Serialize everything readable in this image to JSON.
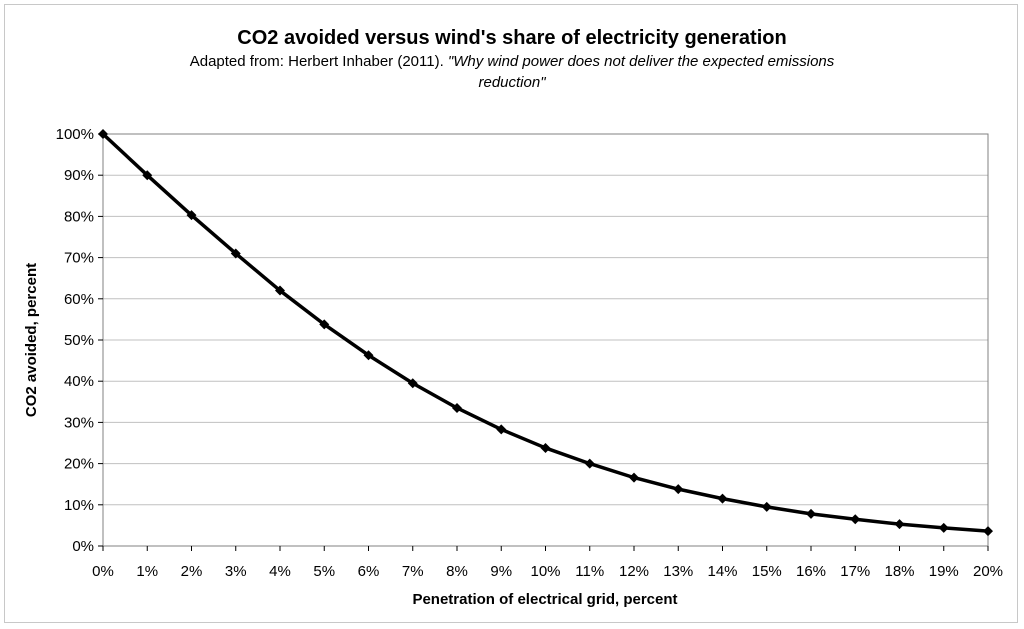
{
  "chart_data": {
    "type": "line",
    "title": "CO2 avoided versus wind's share of electricity generation",
    "subtitle_prefix": "Adapted from: Herbert Inhaber (2011). ",
    "subtitle_italic_line1": "\"Why wind power does not deliver the expected emissions",
    "subtitle_italic_line2": "reduction\"",
    "xlabel": "Penetration of electrical grid, percent",
    "ylabel": "CO2 avoided, percent",
    "x": [
      0,
      1,
      2,
      3,
      4,
      5,
      6,
      7,
      8,
      9,
      10,
      11,
      12,
      13,
      14,
      15,
      16,
      17,
      18,
      19,
      20
    ],
    "x_tick_labels": [
      "0%",
      "1%",
      "2%",
      "3%",
      "4%",
      "5%",
      "6%",
      "7%",
      "8%",
      "9%",
      "10%",
      "11%",
      "12%",
      "13%",
      "14%",
      "15%",
      "16%",
      "17%",
      "18%",
      "19%",
      "20%"
    ],
    "y_tick_labels": [
      "0%",
      "10%",
      "20%",
      "30%",
      "40%",
      "50%",
      "60%",
      "70%",
      "80%",
      "90%",
      "100%"
    ],
    "y_ticks": [
      0,
      10,
      20,
      30,
      40,
      50,
      60,
      70,
      80,
      90,
      100
    ],
    "series": [
      {
        "values": [
          100,
          90,
          80.3,
          71,
          62,
          53.8,
          46.3,
          39.5,
          33.5,
          28.3,
          23.8,
          20,
          16.6,
          13.8,
          11.5,
          9.5,
          7.8,
          6.5,
          5.3,
          4.4,
          3.6
        ]
      }
    ],
    "xlim": [
      0,
      20
    ],
    "ylim": [
      0,
      100
    ],
    "grid": true,
    "line_color": "#000000",
    "grid_color": "#c0c0c0"
  }
}
